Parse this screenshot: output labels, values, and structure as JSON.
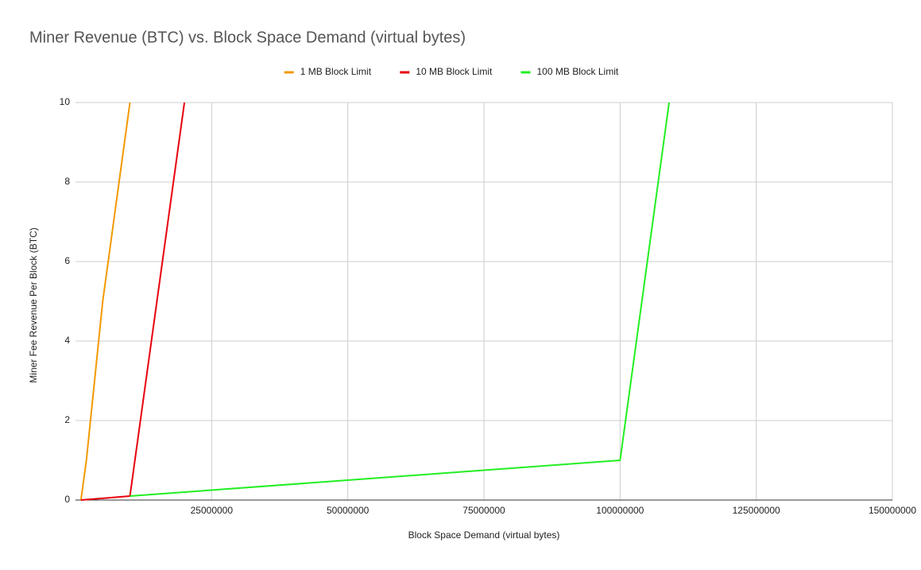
{
  "chart_data": {
    "type": "line",
    "title": "Miner Revenue (BTC) vs. Block Space Demand (virtual bytes)",
    "x_label": "Block Space Demand (virtual bytes)",
    "y_label": "Miner Fee Revenue Per Block (BTC)",
    "series": [
      {
        "name": "1 MB Block Limit",
        "color": "#f29900",
        "x": [
          1000000,
          2000000,
          5000000,
          10000000
        ],
        "values": [
          0,
          1,
          5,
          10
        ]
      },
      {
        "name": "10 MB Block Limit",
        "color": "#e8000b",
        "x": [
          1000000,
          10000000,
          20000000
        ],
        "values": [
          0,
          0.1,
          10
        ]
      },
      {
        "name": "100 MB Block Limit",
        "color": "#22ee22",
        "x": [
          10000000,
          100000000,
          109000000
        ],
        "values": [
          0.1,
          1,
          10
        ]
      }
    ],
    "xlim": [
      0,
      150000000
    ],
    "xticks": [
      25000000,
      50000000,
      75000000,
      100000000,
      125000000,
      150000000
    ],
    "ylim": [
      0,
      10
    ],
    "yticks": [
      0,
      2,
      4,
      6,
      8,
      10
    ],
    "grid": true,
    "legend": "top"
  }
}
